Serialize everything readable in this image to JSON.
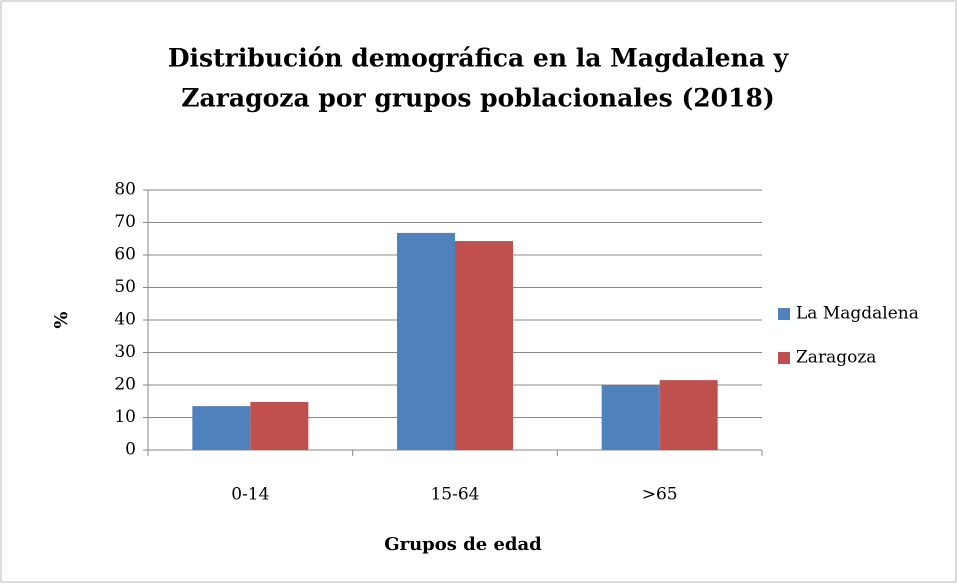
{
  "chart_data": {
    "type": "bar",
    "title": [
      "Distribución demográfica en la Magdalena y",
      "Zaragoza por  grupos poblacionales (2018)"
    ],
    "categories": [
      "0-14",
      "15-64",
      ">65"
    ],
    "series": [
      {
        "name": "La Magdalena",
        "color": "#4f81bd",
        "values": [
          13.5,
          66.8,
          20
        ]
      },
      {
        "name": "Zaragoza",
        "color": "#c0504d",
        "values": [
          14.8,
          64.3,
          21.5
        ]
      }
    ],
    "x_label": "Grupos de edad",
    "y_label": "%",
    "ylim": [
      0,
      80
    ],
    "yticks": [
      0,
      10,
      20,
      30,
      40,
      50,
      60,
      70,
      80
    ],
    "grid": true,
    "legend": "right"
  }
}
